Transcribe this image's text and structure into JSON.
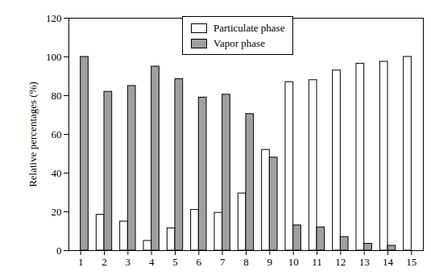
{
  "chart_data": {
    "type": "bar",
    "categories": [
      "1",
      "2",
      "3",
      "4",
      "5",
      "6",
      "7",
      "8",
      "9",
      "10",
      "11",
      "12",
      "13",
      "14",
      "15"
    ],
    "series": [
      {
        "name": "Particulate phase",
        "color": "#ffffff",
        "values": [
          0,
          18.5,
          15,
          5,
          11.5,
          21,
          19.5,
          29.5,
          52,
          87,
          88,
          93,
          96.5,
          97.5,
          100
        ]
      },
      {
        "name": "Vapor phase",
        "color": "#a0a0a0",
        "values": [
          100,
          82,
          85,
          95,
          88.5,
          79,
          80.5,
          70.5,
          48,
          13,
          12,
          7,
          3.5,
          2.5,
          0
        ]
      }
    ],
    "y_label": "Relative percentages (%)",
    "ylim": [
      0,
      120
    ],
    "yticks": [
      0,
      20,
      40,
      60,
      80,
      100,
      120
    ],
    "grid": false,
    "legend": "top"
  }
}
